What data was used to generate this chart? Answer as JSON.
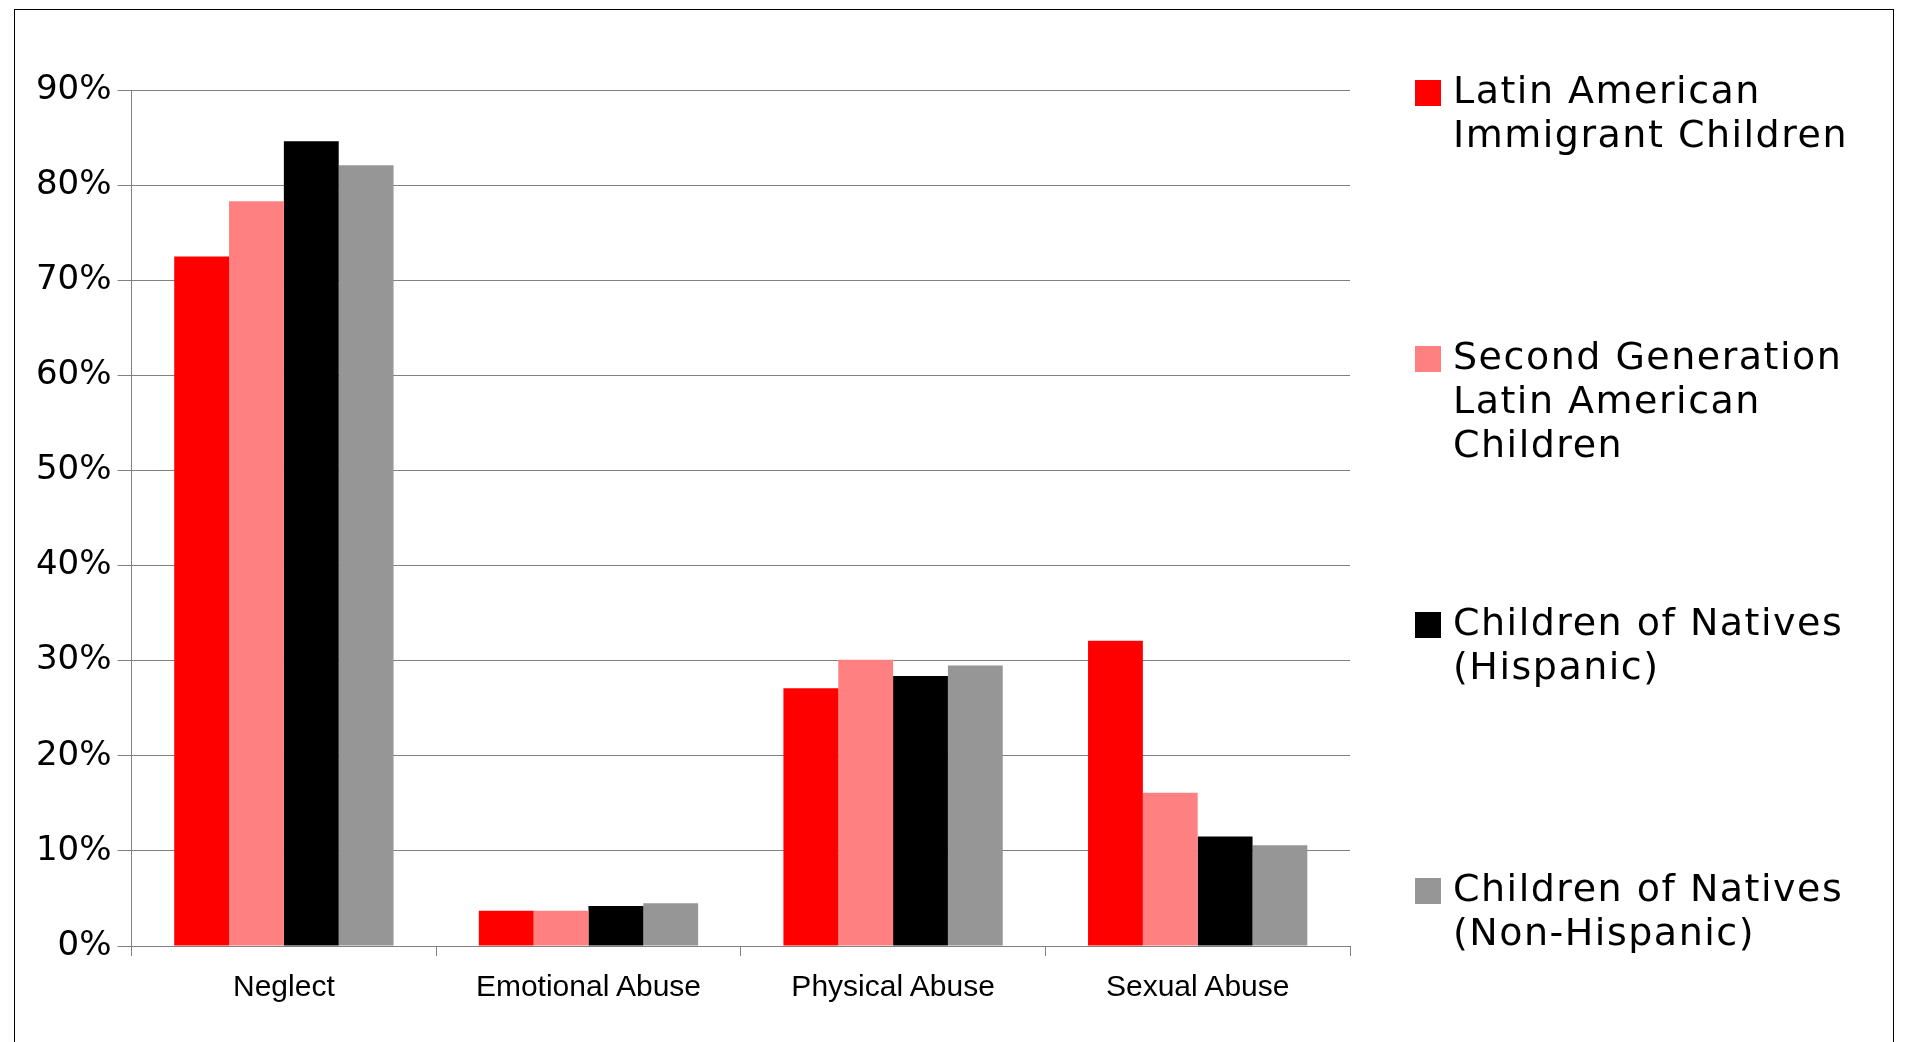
{
  "chart_data": {
    "type": "bar",
    "categories": [
      "Neglect",
      "Emotional Abuse",
      "Physical Abuse",
      "Sexual Abuse"
    ],
    "series": [
      {
        "name": "Latin American Immigrant Children",
        "color": "#ff0000",
        "values": [
          72.5,
          3.7,
          27.1,
          32.1
        ]
      },
      {
        "name": "Second Generation Latin American Children",
        "color": "#ff8080",
        "values": [
          78.3,
          3.7,
          30.1,
          16.1
        ]
      },
      {
        "name": "Children of Natives (Hispanic)",
        "color": "#000000",
        "values": [
          84.6,
          4.2,
          28.4,
          11.5
        ]
      },
      {
        "name": "Children of Natives (Non-Hispanic)",
        "color": "#969696",
        "values": [
          82.1,
          4.5,
          29.5,
          10.6
        ]
      }
    ],
    "ylim": [
      0,
      90
    ],
    "yticks": [
      {
        "value": 0,
        "label": "0%"
      },
      {
        "value": 10,
        "label": "10%"
      },
      {
        "value": 20,
        "label": "20%"
      },
      {
        "value": 30,
        "label": "30%"
      },
      {
        "value": 40,
        "label": "40%"
      },
      {
        "value": 50,
        "label": "50%"
      },
      {
        "value": 60,
        "label": "60%"
      },
      {
        "value": 70,
        "label": "70%"
      },
      {
        "value": 80,
        "label": "80%"
      },
      {
        "value": 90,
        "label": "90%"
      }
    ],
    "grid": "y",
    "legend": "right"
  }
}
